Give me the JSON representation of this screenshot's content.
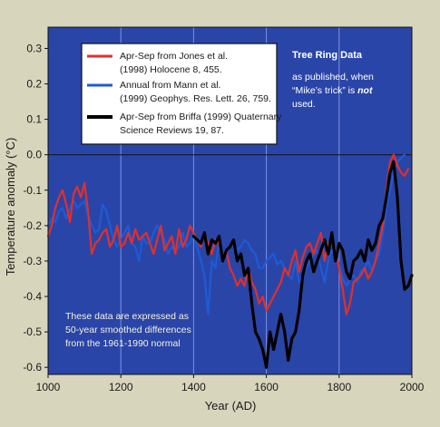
{
  "chart_data": {
    "type": "line",
    "title": "",
    "xlabel": "Year (AD)",
    "ylabel": "Temperature anomaly (°C)",
    "xlim": [
      1000,
      2000
    ],
    "ylim": [
      -0.62,
      0.36
    ],
    "x_ticks": [
      "1000",
      "1200",
      "1400",
      "1600",
      "1800",
      "2000"
    ],
    "y_ticks": [
      "0.3",
      "0.2",
      "0.1",
      "0.0",
      "-0.1",
      "-0.2",
      "-0.3",
      "-0.4",
      "-0.5",
      "-0.6"
    ],
    "y_tick_values": [
      0.3,
      0.2,
      0.1,
      0.0,
      -0.1,
      -0.2,
      -0.3,
      -0.4,
      -0.5,
      -0.6
    ],
    "x_tick_values": [
      1000,
      1200,
      1400,
      1600,
      1800,
      2000
    ],
    "grid": "vertical",
    "legend_position": "top-left",
    "colors": {
      "plot_bg": "#2a45a8",
      "jones": "#e0302a",
      "mann": "#1d5bd6",
      "briffa": "#000000",
      "zero_line": "#111111",
      "grid": "#7d92e6"
    },
    "series": [
      {
        "name": "Apr-Sep from Jones et al. (1998) Holocene 8, 455.",
        "legend_lines": [
          "Apr-Sep from Jones et al.",
          "(1998) Holocene 8, 455."
        ],
        "color": "#e0302a",
        "x": [
          1000,
          1010,
          1020,
          1030,
          1040,
          1050,
          1060,
          1070,
          1080,
          1090,
          1100,
          1110,
          1120,
          1130,
          1140,
          1150,
          1160,
          1170,
          1180,
          1190,
          1200,
          1210,
          1220,
          1230,
          1240,
          1250,
          1260,
          1270,
          1280,
          1290,
          1300,
          1310,
          1320,
          1330,
          1340,
          1350,
          1360,
          1370,
          1380,
          1390,
          1400,
          1410,
          1420,
          1430,
          1440,
          1450,
          1460,
          1470,
          1480,
          1490,
          1500,
          1510,
          1520,
          1530,
          1540,
          1550,
          1560,
          1570,
          1580,
          1590,
          1600,
          1610,
          1620,
          1630,
          1640,
          1650,
          1660,
          1670,
          1680,
          1690,
          1700,
          1710,
          1720,
          1730,
          1740,
          1750,
          1760,
          1770,
          1780,
          1790,
          1800,
          1810,
          1820,
          1830,
          1840,
          1850,
          1860,
          1870,
          1880,
          1890,
          1900,
          1910,
          1920,
          1930,
          1940,
          1950,
          1960,
          1970,
          1980,
          1990
        ],
        "y": [
          -0.23,
          -0.2,
          -0.15,
          -0.12,
          -0.1,
          -0.14,
          -0.19,
          -0.11,
          -0.09,
          -0.12,
          -0.08,
          -0.16,
          -0.28,
          -0.25,
          -0.24,
          -0.22,
          -0.21,
          -0.26,
          -0.24,
          -0.2,
          -0.26,
          -0.25,
          -0.22,
          -0.25,
          -0.21,
          -0.24,
          -0.23,
          -0.22,
          -0.25,
          -0.28,
          -0.24,
          -0.2,
          -0.27,
          -0.25,
          -0.23,
          -0.28,
          -0.21,
          -0.26,
          -0.24,
          -0.2,
          -0.22,
          -0.24,
          -0.26,
          -0.22,
          -0.25,
          -0.28,
          -0.24,
          -0.25,
          -0.3,
          -0.27,
          -0.32,
          -0.34,
          -0.37,
          -0.35,
          -0.37,
          -0.32,
          -0.36,
          -0.38,
          -0.42,
          -0.4,
          -0.44,
          -0.42,
          -0.4,
          -0.38,
          -0.36,
          -0.32,
          -0.34,
          -0.3,
          -0.27,
          -0.33,
          -0.29,
          -0.26,
          -0.25,
          -0.28,
          -0.25,
          -0.22,
          -0.3,
          -0.25,
          -0.24,
          -0.27,
          -0.32,
          -0.38,
          -0.45,
          -0.42,
          -0.36,
          -0.35,
          -0.34,
          -0.32,
          -0.35,
          -0.33,
          -0.3,
          -0.25,
          -0.2,
          -0.1,
          -0.02,
          0.0,
          -0.03,
          -0.05,
          -0.06,
          -0.04
        ]
      },
      {
        "name": "Annual from Mann et al. (1999) Geophys. Res. Lett. 26, 759.",
        "legend_lines": [
          "Annual from Mann et al.",
          "(1999) Geophys. Res. Lett. 26, 759."
        ],
        "color": "#1d5bd6",
        "x": [
          1000,
          1010,
          1020,
          1030,
          1040,
          1050,
          1060,
          1070,
          1080,
          1090,
          1100,
          1110,
          1120,
          1130,
          1140,
          1150,
          1160,
          1170,
          1180,
          1190,
          1200,
          1210,
          1220,
          1230,
          1240,
          1250,
          1260,
          1270,
          1280,
          1290,
          1300,
          1310,
          1320,
          1330,
          1340,
          1350,
          1360,
          1370,
          1380,
          1390,
          1400,
          1410,
          1420,
          1430,
          1440,
          1450,
          1460,
          1470,
          1480,
          1490,
          1500,
          1510,
          1520,
          1530,
          1540,
          1550,
          1560,
          1570,
          1580,
          1590,
          1600,
          1610,
          1620,
          1630,
          1640,
          1650,
          1660,
          1670,
          1680,
          1690,
          1700,
          1710,
          1720,
          1730,
          1740,
          1750,
          1760,
          1770,
          1780,
          1790,
          1800,
          1810,
          1820,
          1830,
          1840,
          1850,
          1860,
          1870,
          1880,
          1890,
          1900,
          1910,
          1920,
          1930,
          1940,
          1950,
          1960,
          1970,
          1980
        ],
        "y": [
          -0.2,
          -0.18,
          -0.19,
          -0.16,
          -0.15,
          -0.18,
          -0.15,
          -0.13,
          -0.15,
          -0.14,
          -0.13,
          -0.17,
          -0.2,
          -0.22,
          -0.21,
          -0.14,
          -0.16,
          -0.2,
          -0.24,
          -0.26,
          -0.24,
          -0.22,
          -0.2,
          -0.25,
          -0.26,
          -0.3,
          -0.23,
          -0.25,
          -0.25,
          -0.22,
          -0.2,
          -0.22,
          -0.24,
          -0.28,
          -0.26,
          -0.27,
          -0.26,
          -0.22,
          -0.26,
          -0.25,
          -0.22,
          -0.26,
          -0.3,
          -0.34,
          -0.45,
          -0.3,
          -0.32,
          -0.24,
          -0.29,
          -0.28,
          -0.26,
          -0.25,
          -0.27,
          -0.26,
          -0.24,
          -0.25,
          -0.27,
          -0.28,
          -0.32,
          -0.32,
          -0.3,
          -0.29,
          -0.28,
          -0.31,
          -0.3,
          -0.32,
          -0.34,
          -0.35,
          -0.3,
          -0.36,
          -0.34,
          -0.32,
          -0.3,
          -0.28,
          -0.27,
          -0.32,
          -0.36,
          -0.3,
          -0.27,
          -0.28,
          -0.31,
          -0.35,
          -0.37,
          -0.35,
          -0.34,
          -0.36,
          -0.33,
          -0.32,
          -0.3,
          -0.33,
          -0.3,
          -0.28,
          -0.22,
          -0.15,
          -0.1,
          -0.05,
          -0.02,
          -0.01,
          0.0
        ]
      },
      {
        "name": "Apr-Sep from Briffa (1999) Quaternary Science Reviews 19, 87.",
        "legend_lines": [
          "Apr-Sep from Briffa (1999) Quaternary",
          "Science Reviews 19, 87."
        ],
        "color": "#000000",
        "x": [
          1400,
          1410,
          1420,
          1430,
          1440,
          1450,
          1460,
          1470,
          1480,
          1490,
          1500,
          1510,
          1520,
          1530,
          1540,
          1550,
          1560,
          1570,
          1580,
          1590,
          1600,
          1610,
          1620,
          1630,
          1640,
          1650,
          1660,
          1670,
          1680,
          1690,
          1700,
          1710,
          1720,
          1730,
          1740,
          1750,
          1760,
          1770,
          1780,
          1790,
          1800,
          1810,
          1820,
          1830,
          1840,
          1850,
          1860,
          1870,
          1880,
          1890,
          1900,
          1910,
          1920,
          1930,
          1940,
          1950,
          1960,
          1970,
          1980,
          1990,
          2000
        ],
        "y": [
          -0.23,
          -0.24,
          -0.25,
          -0.22,
          -0.28,
          -0.24,
          -0.25,
          -0.23,
          -0.3,
          -0.27,
          -0.26,
          -0.24,
          -0.3,
          -0.28,
          -0.34,
          -0.32,
          -0.42,
          -0.5,
          -0.52,
          -0.55,
          -0.6,
          -0.5,
          -0.55,
          -0.5,
          -0.45,
          -0.5,
          -0.58,
          -0.52,
          -0.5,
          -0.44,
          -0.34,
          -0.3,
          -0.28,
          -0.33,
          -0.3,
          -0.27,
          -0.24,
          -0.28,
          -0.22,
          -0.3,
          -0.25,
          -0.27,
          -0.33,
          -0.35,
          -0.3,
          -0.29,
          -0.27,
          -0.3,
          -0.24,
          -0.27,
          -0.25,
          -0.2,
          -0.18,
          -0.12,
          -0.05,
          -0.02,
          -0.12,
          -0.3,
          -0.38,
          -0.37,
          -0.34
        ]
      }
    ],
    "annotations": {
      "title_box": "Tree Ring Data",
      "note_lines": [
        "as published, when",
        "“Mike’s trick” is ",
        "not",
        "used."
      ],
      "bottom_lines": [
        "These data are expressed as",
        "50-year smoothed differences",
        "from the 1961-1990 normal"
      ]
    }
  }
}
